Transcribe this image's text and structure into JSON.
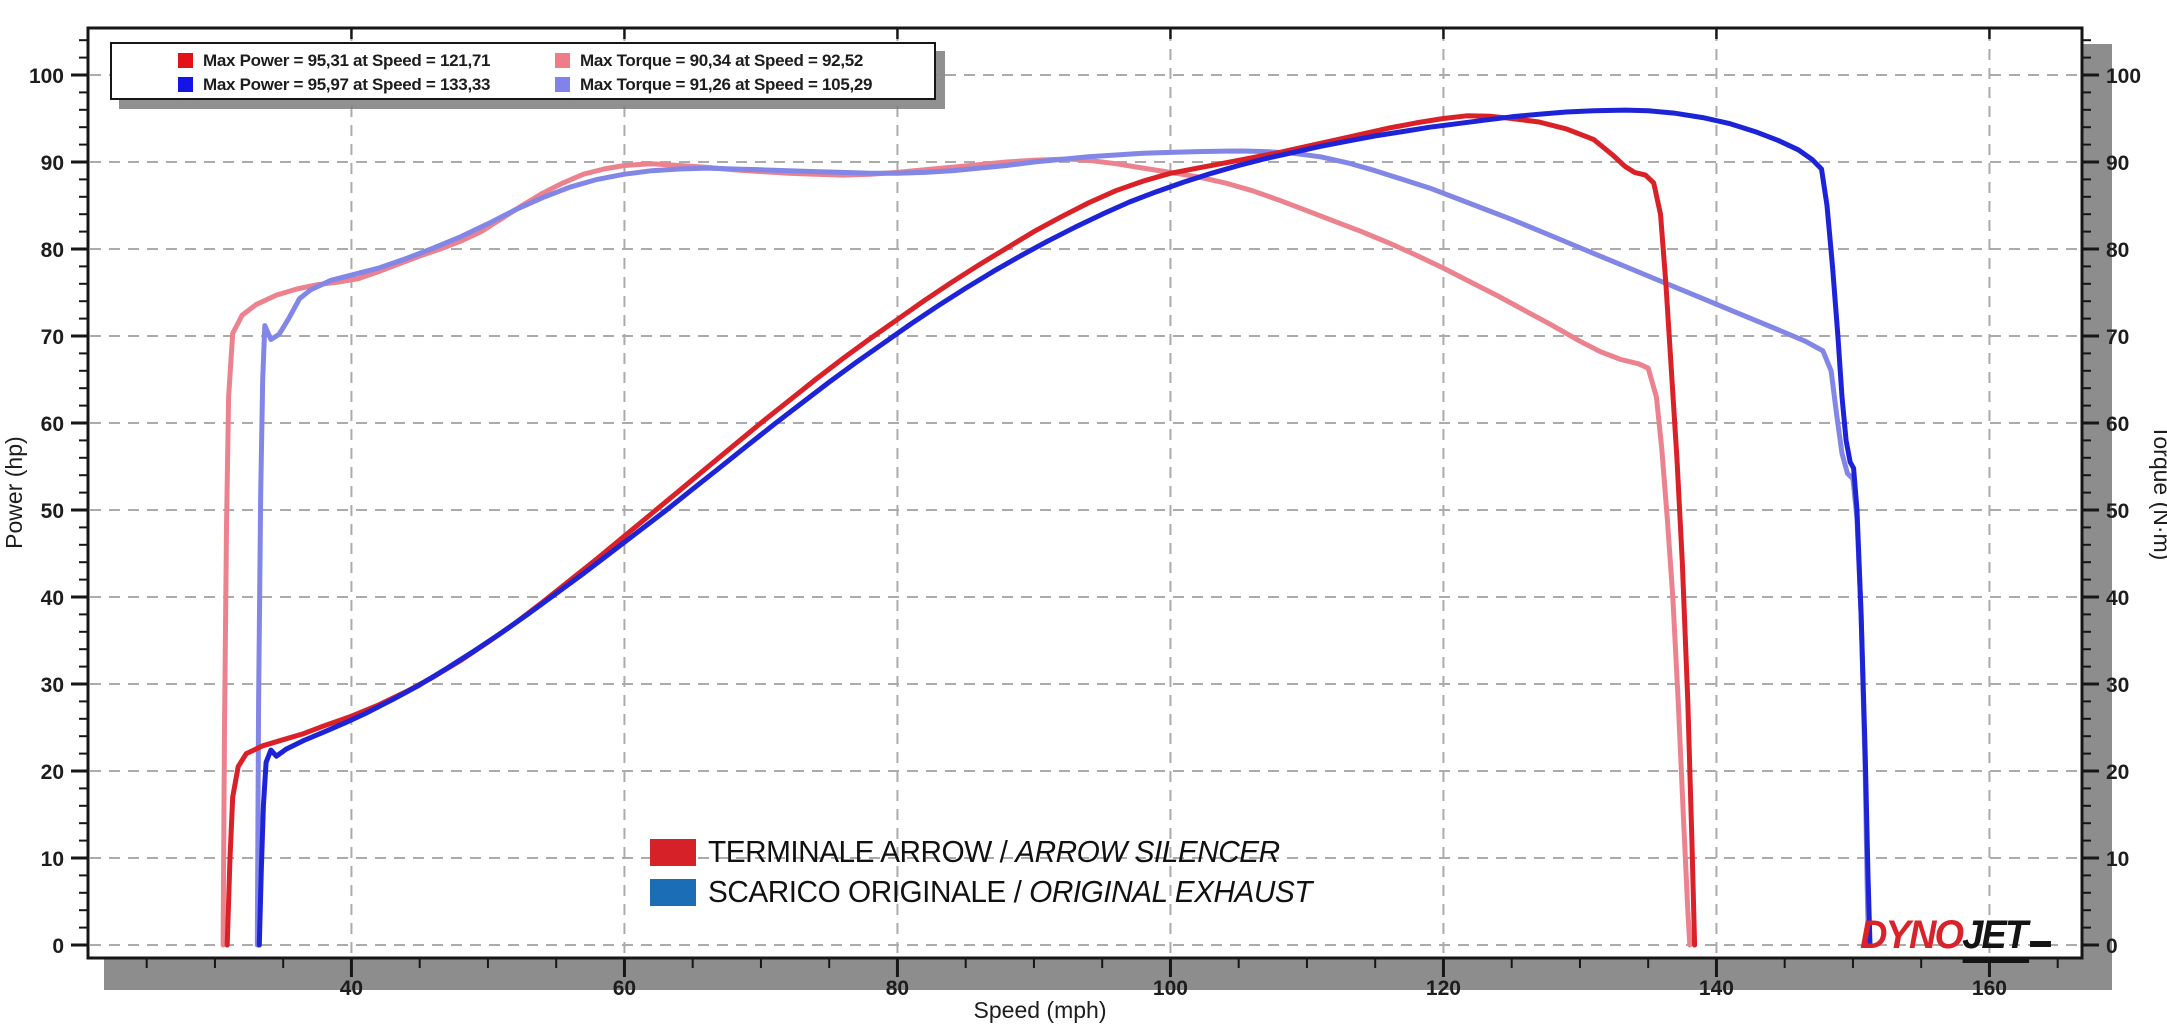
{
  "stats_legend": {
    "rows": [
      {
        "left": {
          "color": "#e31219",
          "label": "Max Power = 95,31 at Speed = 121,71"
        },
        "right": {
          "color": "#f07c88",
          "label": "Max Torque = 90,34 at Speed = 92,52"
        }
      },
      {
        "left": {
          "color": "#1414e6",
          "label": "Max Power = 95,97 at Speed = 133,33"
        },
        "right": {
          "color": "#8183ea",
          "label": "Max Torque = 91,26 at Speed = 105,29"
        }
      }
    ]
  },
  "series_legend": [
    {
      "swatch": "#d62128",
      "name": "TERMINALE ARROW",
      "divider": " / ",
      "name_alt": "ARROW SILENCER"
    },
    {
      "swatch": "#1b6db6",
      "name": "SCARICO ORIGINALE",
      "divider": " / ",
      "name_alt": "ORIGINAL EXHAUST"
    }
  ],
  "logo": {
    "part1": "DYNO",
    "part2": "JET"
  },
  "axes": {
    "left_title": "Power (hp)",
    "right_title": "Torque (N·m)",
    "bottom_title": "Speed (mph)",
    "x_ticks": [
      40,
      60,
      80,
      100,
      120,
      140,
      160
    ],
    "y_ticks": [
      0,
      10,
      20,
      30,
      40,
      50,
      60,
      70,
      80,
      90,
      100
    ]
  },
  "chart_data": {
    "type": "line",
    "title": "",
    "xlabel": "Speed (mph)",
    "ylabel_left": "Power (hp)",
    "ylabel_right": "Torque (N·m)",
    "x_range": [
      20.7,
      166.8
    ],
    "y_range": [
      0,
      105.5
    ],
    "grid": "dashed",
    "legend_position": "top-left",
    "series": [
      {
        "name": "Arrow silencer torque",
        "axis": "right",
        "unit": "N·m",
        "color": "#ec828e",
        "max": {
          "value": 90.34,
          "at_speed": 92.52
        },
        "points": [
          [
            30.6,
            0
          ],
          [
            30.7,
            25
          ],
          [
            30.85,
            48
          ],
          [
            31,
            63
          ],
          [
            31.3,
            70.3
          ],
          [
            32,
            72.4
          ],
          [
            33,
            73.6
          ],
          [
            34.5,
            74.7
          ],
          [
            36,
            75.4
          ],
          [
            37.5,
            75.9
          ],
          [
            39,
            76.2
          ],
          [
            40.5,
            76.6
          ],
          [
            42,
            77.4
          ],
          [
            43.5,
            78.3
          ],
          [
            45,
            79.2
          ],
          [
            46.5,
            80
          ],
          [
            48,
            80.9
          ],
          [
            49.5,
            82
          ],
          [
            51,
            83.5
          ],
          [
            52.5,
            85
          ],
          [
            54,
            86.4
          ],
          [
            55.5,
            87.6
          ],
          [
            57,
            88.6
          ],
          [
            58.5,
            89.2
          ],
          [
            60,
            89.6
          ],
          [
            62,
            89.8
          ],
          [
            64,
            89.6
          ],
          [
            66,
            89.4
          ],
          [
            68,
            89.1
          ],
          [
            70,
            88.9
          ],
          [
            72,
            88.7
          ],
          [
            74,
            88.6
          ],
          [
            76,
            88.5
          ],
          [
            78,
            88.6
          ],
          [
            80,
            88.8
          ],
          [
            82,
            89.1
          ],
          [
            84,
            89.4
          ],
          [
            86,
            89.7
          ],
          [
            88,
            90
          ],
          [
            90,
            90.2
          ],
          [
            92.52,
            90.34
          ],
          [
            94,
            90.2
          ],
          [
            96,
            89.8
          ],
          [
            98,
            89.3
          ],
          [
            100,
            88.8
          ],
          [
            102,
            88.3
          ],
          [
            104,
            87.6
          ],
          [
            106,
            86.7
          ],
          [
            108,
            85.6
          ],
          [
            110,
            84.4
          ],
          [
            112,
            83.2
          ],
          [
            114,
            82
          ],
          [
            116,
            80.7
          ],
          [
            118,
            79.3
          ],
          [
            120,
            77.8
          ],
          [
            122,
            76.2
          ],
          [
            124,
            74.6
          ],
          [
            126,
            72.9
          ],
          [
            128,
            71.2
          ],
          [
            130,
            69.4
          ],
          [
            131.5,
            68.2
          ],
          [
            133,
            67.3
          ],
          [
            134.3,
            66.8
          ],
          [
            135,
            66.3
          ],
          [
            135.6,
            63
          ],
          [
            136,
            57
          ],
          [
            136.4,
            49
          ],
          [
            136.8,
            40
          ],
          [
            137.2,
            28
          ],
          [
            137.6,
            14
          ],
          [
            137.9,
            4
          ],
          [
            138.05,
            0
          ]
        ]
      },
      {
        "name": "Original exhaust torque",
        "axis": "right",
        "unit": "N·m",
        "color": "#8286e6",
        "max": {
          "value": 91.26,
          "at_speed": 105.29
        },
        "points": [
          [
            33.1,
            0
          ],
          [
            33.2,
            28
          ],
          [
            33.35,
            52
          ],
          [
            33.5,
            65
          ],
          [
            33.65,
            71.2
          ],
          [
            34.1,
            69.6
          ],
          [
            34.7,
            70.2
          ],
          [
            35.4,
            72
          ],
          [
            36.2,
            74.3
          ],
          [
            37,
            75.3
          ],
          [
            38.5,
            76.4
          ],
          [
            40,
            77
          ],
          [
            42,
            77.8
          ],
          [
            44,
            78.9
          ],
          [
            46,
            80.1
          ],
          [
            48,
            81.4
          ],
          [
            50,
            82.9
          ],
          [
            52,
            84.5
          ],
          [
            54,
            85.9
          ],
          [
            56,
            87.1
          ],
          [
            58,
            88
          ],
          [
            60,
            88.6
          ],
          [
            62,
            89
          ],
          [
            64,
            89.2
          ],
          [
            66,
            89.3
          ],
          [
            68,
            89.2
          ],
          [
            70,
            89.1
          ],
          [
            72,
            89
          ],
          [
            74,
            88.9
          ],
          [
            76,
            88.8
          ],
          [
            78,
            88.7
          ],
          [
            80,
            88.7
          ],
          [
            82,
            88.8
          ],
          [
            84,
            89
          ],
          [
            86,
            89.3
          ],
          [
            88,
            89.6
          ],
          [
            90,
            90
          ],
          [
            92,
            90.3
          ],
          [
            94,
            90.6
          ],
          [
            96,
            90.8
          ],
          [
            98,
            91
          ],
          [
            100,
            91.1
          ],
          [
            102,
            91.2
          ],
          [
            104,
            91.25
          ],
          [
            105.29,
            91.26
          ],
          [
            107,
            91.2
          ],
          [
            109,
            91
          ],
          [
            111,
            90.6
          ],
          [
            113,
            89.9
          ],
          [
            115,
            89
          ],
          [
            117,
            88
          ],
          [
            119,
            87
          ],
          [
            121,
            85.8
          ],
          [
            123,
            84.6
          ],
          [
            125,
            83.4
          ],
          [
            127,
            82.1
          ],
          [
            129,
            80.8
          ],
          [
            131,
            79.5
          ],
          [
            133,
            78.2
          ],
          [
            135,
            76.9
          ],
          [
            137,
            75.6
          ],
          [
            139,
            74.3
          ],
          [
            141,
            73
          ],
          [
            143,
            71.7
          ],
          [
            145,
            70.4
          ],
          [
            146.5,
            69.4
          ],
          [
            147.8,
            68.3
          ],
          [
            148.4,
            66
          ],
          [
            148.8,
            61
          ],
          [
            149.2,
            56.5
          ],
          [
            149.6,
            54.2
          ],
          [
            150,
            53.6
          ],
          [
            150.3,
            49
          ],
          [
            150.6,
            38
          ],
          [
            150.9,
            20
          ],
          [
            151.05,
            6
          ],
          [
            151.15,
            0
          ]
        ]
      },
      {
        "name": "Arrow silencer power",
        "axis": "left",
        "unit": "hp",
        "color": "#da2128",
        "max": {
          "value": 95.31,
          "at_speed": 121.71
        },
        "points": [
          [
            30.9,
            0
          ],
          [
            31.1,
            10
          ],
          [
            31.3,
            17
          ],
          [
            31.7,
            20.5
          ],
          [
            32.3,
            22
          ],
          [
            33.5,
            22.9
          ],
          [
            35,
            23.6
          ],
          [
            36.5,
            24.3
          ],
          [
            38,
            25.2
          ],
          [
            40,
            26.3
          ],
          [
            42,
            27.6
          ],
          [
            44,
            29.1
          ],
          [
            46,
            30.8
          ],
          [
            48,
            32.7
          ],
          [
            50,
            34.8
          ],
          [
            52,
            37
          ],
          [
            54,
            39.4
          ],
          [
            56,
            41.9
          ],
          [
            58,
            44.4
          ],
          [
            60,
            47
          ],
          [
            62,
            49.6
          ],
          [
            64,
            52.2
          ],
          [
            66,
            54.8
          ],
          [
            68,
            57.4
          ],
          [
            70,
            60
          ],
          [
            72,
            62.5
          ],
          [
            74,
            65
          ],
          [
            76,
            67.4
          ],
          [
            78,
            69.7
          ],
          [
            80,
            71.9
          ],
          [
            82,
            74.1
          ],
          [
            84,
            76.2
          ],
          [
            86,
            78.2
          ],
          [
            88,
            80.1
          ],
          [
            90,
            82
          ],
          [
            92,
            83.7
          ],
          [
            94,
            85.3
          ],
          [
            96,
            86.7
          ],
          [
            98,
            87.8
          ],
          [
            100,
            88.7
          ],
          [
            102,
            89.3
          ],
          [
            104,
            89.9
          ],
          [
            106,
            90.5
          ],
          [
            108,
            91.1
          ],
          [
            110,
            91.8
          ],
          [
            112,
            92.5
          ],
          [
            114,
            93.2
          ],
          [
            116,
            93.9
          ],
          [
            118,
            94.5
          ],
          [
            120,
            95
          ],
          [
            121.71,
            95.31
          ],
          [
            123.5,
            95.25
          ],
          [
            125,
            95
          ],
          [
            127,
            94.6
          ],
          [
            129,
            93.8
          ],
          [
            131,
            92.6
          ],
          [
            132.4,
            90.8
          ],
          [
            133.3,
            89.5
          ],
          [
            134,
            88.8
          ],
          [
            134.8,
            88.5
          ],
          [
            135.4,
            87.6
          ],
          [
            135.9,
            84
          ],
          [
            136.3,
            76
          ],
          [
            136.7,
            66
          ],
          [
            137.1,
            56
          ],
          [
            137.5,
            44
          ],
          [
            137.9,
            28
          ],
          [
            138.2,
            12
          ],
          [
            138.4,
            0
          ]
        ]
      },
      {
        "name": "Original exhaust power",
        "axis": "left",
        "unit": "hp",
        "color": "#1d24d8",
        "max": {
          "value": 95.97,
          "at_speed": 133.33
        },
        "points": [
          [
            33.25,
            0
          ],
          [
            33.4,
            9
          ],
          [
            33.55,
            16
          ],
          [
            33.75,
            21
          ],
          [
            34.1,
            22.4
          ],
          [
            34.5,
            21.7
          ],
          [
            35.2,
            22.5
          ],
          [
            36.5,
            23.5
          ],
          [
            38,
            24.5
          ],
          [
            39.5,
            25.5
          ],
          [
            41,
            26.6
          ],
          [
            43,
            28.2
          ],
          [
            45,
            29.9
          ],
          [
            47,
            31.8
          ],
          [
            49,
            33.8
          ],
          [
            51,
            35.9
          ],
          [
            53,
            38.1
          ],
          [
            55,
            40.4
          ],
          [
            57,
            42.7
          ],
          [
            59,
            45.1
          ],
          [
            61,
            47.5
          ],
          [
            63,
            49.9
          ],
          [
            65,
            52.4
          ],
          [
            67,
            54.9
          ],
          [
            69,
            57.4
          ],
          [
            71,
            59.9
          ],
          [
            73,
            62.3
          ],
          [
            75,
            64.7
          ],
          [
            77,
            67
          ],
          [
            79,
            69.2
          ],
          [
            81,
            71.4
          ],
          [
            83,
            73.5
          ],
          [
            85,
            75.5
          ],
          [
            87,
            77.4
          ],
          [
            89,
            79.2
          ],
          [
            91,
            80.9
          ],
          [
            93,
            82.5
          ],
          [
            95,
            84
          ],
          [
            97,
            85.4
          ],
          [
            99,
            86.6
          ],
          [
            101,
            87.7
          ],
          [
            103,
            88.7
          ],
          [
            105,
            89.6
          ],
          [
            107,
            90.4
          ],
          [
            109,
            91.1
          ],
          [
            111,
            91.8
          ],
          [
            113,
            92.4
          ],
          [
            115,
            93
          ],
          [
            117,
            93.5
          ],
          [
            119,
            94
          ],
          [
            121,
            94.4
          ],
          [
            123,
            94.8
          ],
          [
            125,
            95.2
          ],
          [
            127,
            95.5
          ],
          [
            129,
            95.75
          ],
          [
            131,
            95.9
          ],
          [
            133.33,
            95.97
          ],
          [
            135,
            95.9
          ],
          [
            137,
            95.6
          ],
          [
            139,
            95.1
          ],
          [
            141,
            94.4
          ],
          [
            143,
            93.4
          ],
          [
            144.5,
            92.5
          ],
          [
            146,
            91.4
          ],
          [
            147,
            90.3
          ],
          [
            147.7,
            89.2
          ],
          [
            148.1,
            85
          ],
          [
            148.5,
            78
          ],
          [
            148.9,
            70
          ],
          [
            149.2,
            63
          ],
          [
            149.5,
            58
          ],
          [
            149.8,
            55.5
          ],
          [
            150.05,
            54.8
          ],
          [
            150.3,
            50
          ],
          [
            150.6,
            38
          ],
          [
            150.9,
            22
          ],
          [
            151.1,
            8
          ],
          [
            151.25,
            0
          ]
        ]
      }
    ]
  }
}
